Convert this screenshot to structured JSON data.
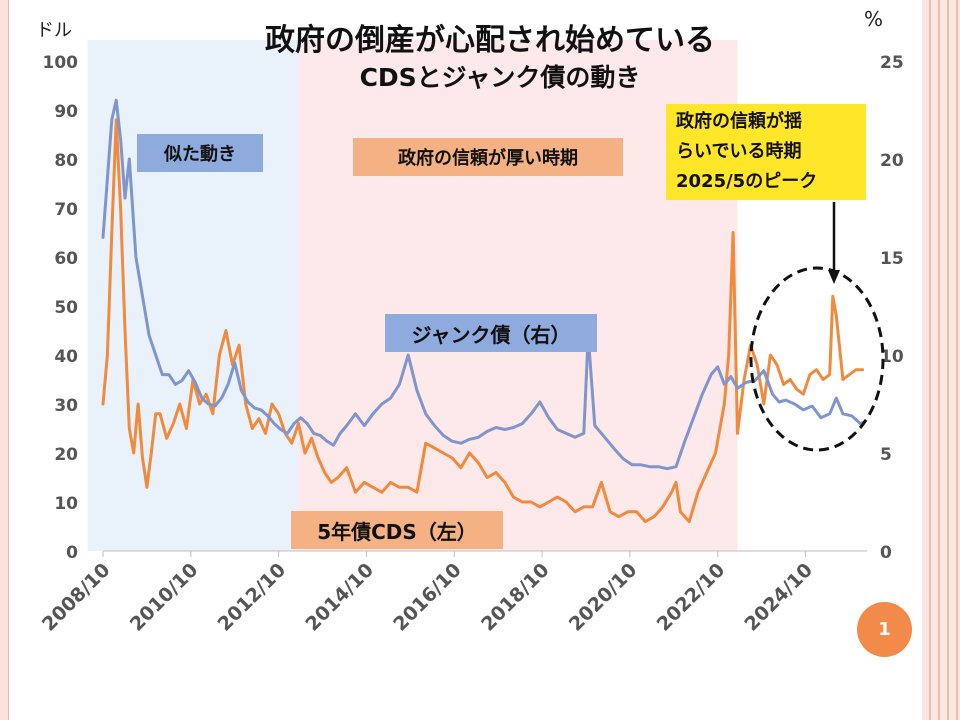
{
  "chart_data": {
    "type": "line",
    "title": "政府の倒産が心配され始めている",
    "subtitle": "CDSとジャンク債の動き",
    "y_left_label": "ドル",
    "y_right_label": "%",
    "y_left_ticks": [
      "0",
      "10",
      "20",
      "30",
      "40",
      "50",
      "60",
      "70",
      "80",
      "90",
      "100"
    ],
    "y_right_ticks": [
      "0",
      "5",
      "10",
      "15",
      "20",
      "25"
    ],
    "ylim_left": [
      0,
      100
    ],
    "ylim_right": [
      0,
      25
    ],
    "x_tick_labels": [
      "2008/10",
      "2010/10",
      "2012/10",
      "2014/10",
      "2016/10",
      "2018/10",
      "2020/10",
      "2022/10",
      "2024/10"
    ],
    "x_tick_years": [
      2008.75,
      2010.75,
      2012.75,
      2014.75,
      2016.75,
      2018.75,
      2020.75,
      2022.75,
      2024.75
    ],
    "xlim": [
      2008.75,
      2026.15
    ],
    "regions": [
      {
        "label": "似た動き",
        "from": 2008.4,
        "to": 2013.2,
        "color": "#e9f1fa"
      },
      {
        "label": "政府の信頼が厚い時期",
        "from": 2013.2,
        "to": 2023.2,
        "color": "#fde9e9"
      }
    ],
    "series": [
      {
        "name": "5年債CDS（左）",
        "axis": "left",
        "color": "#f08a3e",
        "x": [
          2008.75,
          2008.85,
          2008.95,
          2009.05,
          2009.15,
          2009.25,
          2009.35,
          2009.45,
          2009.55,
          2009.65,
          2009.75,
          2009.85,
          2009.95,
          2010.05,
          2010.2,
          2010.35,
          2010.5,
          2010.65,
          2010.8,
          2010.95,
          2011.1,
          2011.25,
          2011.4,
          2011.55,
          2011.7,
          2011.85,
          2012.0,
          2012.15,
          2012.3,
          2012.45,
          2012.6,
          2012.75,
          2012.9,
          2013.05,
          2013.2,
          2013.35,
          2013.5,
          2013.65,
          2013.8,
          2013.95,
          2014.1,
          2014.3,
          2014.5,
          2014.7,
          2014.9,
          2015.1,
          2015.3,
          2015.5,
          2015.7,
          2015.9,
          2016.1,
          2016.3,
          2016.5,
          2016.7,
          2016.9,
          2017.1,
          2017.3,
          2017.5,
          2017.7,
          2017.9,
          2018.1,
          2018.3,
          2018.5,
          2018.7,
          2018.9,
          2019.1,
          2019.3,
          2019.5,
          2019.7,
          2019.9,
          2020.1,
          2020.3,
          2020.5,
          2020.7,
          2020.9,
          2021.1,
          2021.3,
          2021.5,
          2021.7,
          2021.8,
          2021.9,
          2022.1,
          2022.3,
          2022.5,
          2022.7,
          2022.9,
          2023.0,
          2023.1,
          2023.2,
          2023.35,
          2023.5,
          2023.65,
          2023.8,
          2023.95,
          2024.1,
          2024.25,
          2024.4,
          2024.55,
          2024.7,
          2024.85,
          2025.0,
          2025.15,
          2025.3,
          2025.37,
          2025.45,
          2025.6,
          2025.75,
          2025.9,
          2026.05
        ],
        "values": [
          30,
          40,
          65,
          88,
          70,
          45,
          25,
          20,
          30,
          19,
          13,
          20,
          28,
          28,
          23,
          26,
          30,
          25,
          35,
          30,
          32,
          28,
          40,
          45,
          38,
          42,
          30,
          25,
          27,
          24,
          30,
          28,
          24,
          22,
          26,
          20,
          23,
          19,
          16,
          14,
          15,
          17,
          12,
          14,
          13,
          12,
          14,
          13,
          13,
          12,
          22,
          21,
          20,
          19,
          17,
          20,
          18,
          15,
          16,
          14,
          11,
          10,
          10,
          9,
          10,
          11,
          10,
          8,
          9,
          9,
          14,
          8,
          7,
          8,
          8,
          6,
          7,
          9,
          12,
          14,
          8,
          6,
          12,
          16,
          20,
          30,
          40,
          65,
          24,
          35,
          42,
          38,
          30,
          40,
          38,
          34,
          35,
          33,
          32,
          36,
          37,
          35,
          36,
          52,
          48,
          35,
          36,
          37,
          37
        ]
      },
      {
        "name": "ジャンク債（右）",
        "axis": "right",
        "color": "#7f95cc",
        "x": [
          2008.75,
          2008.85,
          2008.95,
          2009.05,
          2009.15,
          2009.25,
          2009.35,
          2009.5,
          2009.65,
          2009.8,
          2009.95,
          2010.1,
          2010.25,
          2010.4,
          2010.55,
          2010.7,
          2010.85,
          2011.0,
          2011.15,
          2011.3,
          2011.45,
          2011.6,
          2011.75,
          2011.9,
          2012.05,
          2012.2,
          2012.35,
          2012.5,
          2012.65,
          2012.8,
          2012.95,
          2013.1,
          2013.25,
          2013.4,
          2013.55,
          2013.7,
          2013.85,
          2014.0,
          2014.15,
          2014.3,
          2014.5,
          2014.7,
          2014.9,
          2015.1,
          2015.3,
          2015.5,
          2015.7,
          2015.9,
          2016.1,
          2016.3,
          2016.5,
          2016.7,
          2016.9,
          2017.1,
          2017.3,
          2017.5,
          2017.7,
          2017.9,
          2018.1,
          2018.3,
          2018.5,
          2018.7,
          2018.9,
          2019.1,
          2019.3,
          2019.5,
          2019.7,
          2019.8,
          2019.95,
          2020.1,
          2020.25,
          2020.4,
          2020.6,
          2020.8,
          2021.0,
          2021.2,
          2021.4,
          2021.6,
          2021.8,
          2022.0,
          2022.2,
          2022.4,
          2022.6,
          2022.75,
          2022.9,
          2023.05,
          2023.2,
          2023.4,
          2023.6,
          2023.8,
          2024.0,
          2024.15,
          2024.3,
          2024.5,
          2024.7,
          2024.9,
          2025.1,
          2025.3,
          2025.45,
          2025.6,
          2025.8,
          2026.0,
          2026.1
        ],
        "values": [
          16,
          19,
          22,
          23,
          21,
          18,
          20,
          15,
          13,
          11,
          10,
          9,
          9,
          8.5,
          8.7,
          9.2,
          8.6,
          7.8,
          7.5,
          7.4,
          7.8,
          8.5,
          9.6,
          8.2,
          7.6,
          7.3,
          7.2,
          6.9,
          6.5,
          6.2,
          6.0,
          6.5,
          6.8,
          6.5,
          6.0,
          5.9,
          5.6,
          5.4,
          6.0,
          6.4,
          7.0,
          6.4,
          7.0,
          7.5,
          7.8,
          8.5,
          10.0,
          8.2,
          7.0,
          6.4,
          5.9,
          5.6,
          5.5,
          5.7,
          5.8,
          6.1,
          6.3,
          6.2,
          6.3,
          6.5,
          7.0,
          7.6,
          6.8,
          6.2,
          6.0,
          5.8,
          6.0,
          11.0,
          6.4,
          6.0,
          5.6,
          5.2,
          4.7,
          4.4,
          4.4,
          4.3,
          4.3,
          4.2,
          4.3,
          5.6,
          6.8,
          8.0,
          9.0,
          9.4,
          8.5,
          8.9,
          8.3,
          8.6,
          8.7,
          9.2,
          8.0,
          7.6,
          7.7,
          7.5,
          7.2,
          7.4,
          6.8,
          7.0,
          7.8,
          7.0,
          6.9,
          6.5,
          6.6
        ]
      }
    ],
    "annotations": [
      {
        "text": "似た動き"
      },
      {
        "text": "政府の信頼が厚い時期"
      },
      {
        "text": "ジャンク債（右）"
      },
      {
        "text": "5年債CDS（左）"
      },
      {
        "text_lines": [
          "政府の信頼が揺",
          "らいでいる時期",
          "2025/5のピーク"
        ]
      }
    ]
  },
  "page_number": "1"
}
